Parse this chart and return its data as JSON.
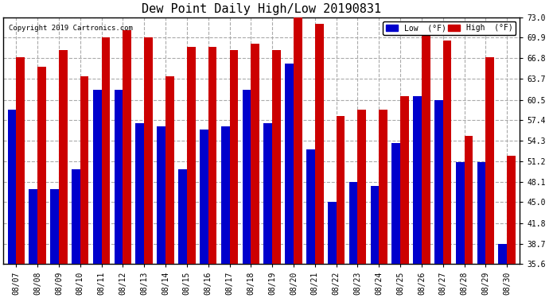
{
  "title": "Dew Point Daily High/Low 20190831",
  "copyright": "Copyright 2019 Cartronics.com",
  "dates": [
    "08/07",
    "08/08",
    "08/09",
    "08/10",
    "08/11",
    "08/12",
    "08/13",
    "08/14",
    "08/15",
    "08/16",
    "08/17",
    "08/18",
    "08/19",
    "08/20",
    "08/21",
    "08/22",
    "08/23",
    "08/24",
    "08/25",
    "08/26",
    "08/27",
    "08/28",
    "08/29",
    "08/30"
  ],
  "low": [
    59.0,
    47.0,
    47.0,
    50.0,
    62.0,
    62.0,
    57.0,
    56.5,
    50.0,
    56.0,
    56.5,
    62.0,
    57.0,
    66.0,
    53.0,
    45.0,
    48.0,
    47.5,
    54.0,
    61.0,
    60.5,
    51.0,
    51.0,
    38.7
  ],
  "high": [
    67.0,
    65.5,
    68.0,
    64.0,
    70.0,
    71.0,
    70.0,
    64.0,
    68.5,
    68.5,
    68.0,
    69.0,
    68.0,
    74.0,
    72.0,
    58.0,
    59.0,
    59.0,
    61.0,
    72.0,
    69.5,
    55.0,
    67.0,
    52.0
  ],
  "ylim": [
    35.6,
    73.0
  ],
  "yticks": [
    35.6,
    38.7,
    41.8,
    45.0,
    48.1,
    51.2,
    54.3,
    57.4,
    60.5,
    63.7,
    66.8,
    69.9,
    73.0
  ],
  "low_color": "#0000cc",
  "high_color": "#cc0000",
  "bg_color": "#ffffff",
  "grid_color": "#aaaaaa",
  "bar_width": 0.4,
  "title_fontsize": 11,
  "tick_fontsize": 7,
  "legend_low_label": "Low  (°F)",
  "legend_high_label": "High  (°F)"
}
